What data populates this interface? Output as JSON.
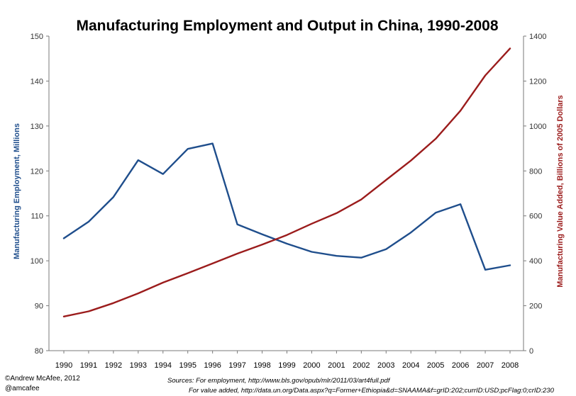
{
  "chart_data": {
    "type": "line",
    "title": "Manufacturing Employment and Output in China, 1990-2008",
    "x": [
      "1990",
      "1991",
      "1992",
      "1993",
      "1994",
      "1995",
      "1996",
      "1997",
      "1998",
      "1999",
      "2000",
      "2001",
      "2002",
      "2003",
      "2004",
      "2005",
      "2006",
      "2007",
      "2008"
    ],
    "series": [
      {
        "axis": "left",
        "color": "#1f4e8c",
        "values": [
          105.0,
          108.7,
          114.2,
          122.4,
          119.3,
          124.9,
          126.1,
          108.1,
          105.9,
          103.8,
          102.0,
          101.1,
          100.7,
          102.6,
          106.3,
          110.7,
          112.6,
          98.0,
          99.0
        ]
      },
      {
        "axis": "right",
        "color": "#9b1c1c",
        "values": [
          152,
          175,
          212,
          255,
          303,
          345,
          388,
          432,
          472,
          515,
          565,
          612,
          673,
          760,
          846,
          943,
          1068,
          1225,
          1345
        ]
      }
    ],
    "ylabel_left": "Manufacturing Employment, Millions",
    "ylabel_right": "Manufacturing Value Added, Billions of 2005 Dollars",
    "ylim_left": [
      80,
      150
    ],
    "yticks_left": [
      80,
      90,
      100,
      110,
      120,
      130,
      140,
      150
    ],
    "ylim_right": [
      0,
      1400
    ],
    "yticks_right": [
      0,
      200,
      400,
      600,
      800,
      1000,
      1200,
      1400
    ],
    "grid": false,
    "left_axis_color": "#1f4e8c",
    "right_axis_color": "#9b1c1c"
  },
  "credits": {
    "line1": "©Andrew McAfee, 2012",
    "line2": "@amcafee"
  },
  "sources": {
    "line1": "Sources: For employment, http://www.bls.gov/opub/mlr/2011/03/art4full.pdf",
    "line2": "For value added, http://data.un.org/Data.aspx?q=Former+Ethiopia&d=SNAAMA&f=grID:202;currID:USD;pcFlag:0;crID:230"
  }
}
